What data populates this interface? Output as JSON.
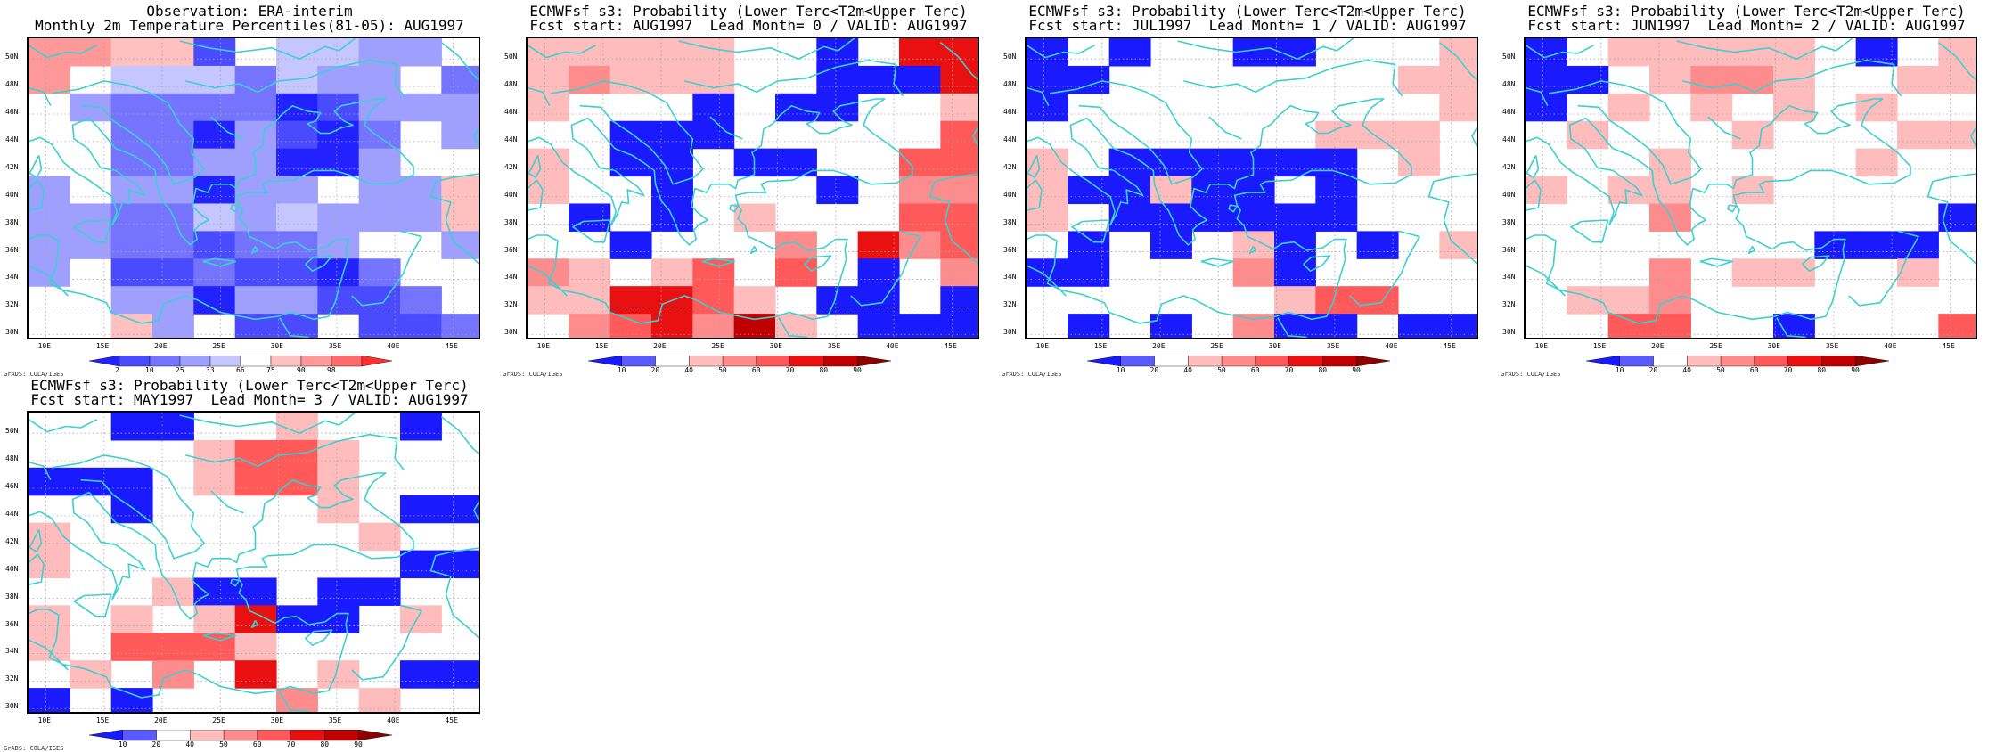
{
  "colors": {
    "coast": "#3cd0d0",
    "grid": "#a6a6a6",
    "frame": "#000000",
    "obs_scale": [
      "#2222ff",
      "#4a4aff",
      "#7474ff",
      "#9f9fff",
      "#c6c6ff",
      "#ffffff",
      "#ffc0c0",
      "#ff9898",
      "#ff6a6a",
      "#ff3030"
    ],
    "prob_scale": [
      "#1a1aff",
      "#5a5aff",
      "#ffffff",
      "#ffbcbc",
      "#ff8c8c",
      "#ff5959",
      "#e81010",
      "#c00000",
      "#8f0000"
    ]
  },
  "panels": [
    {
      "id": "obs",
      "title1": "Observation: ERA-interim",
      "title2": "Monthly 2m Temperature Percentiles(81-05): AUG1997",
      "colorbar": "obs",
      "cbar_labels": [
        "2",
        "10",
        "25",
        "33",
        "66",
        "75",
        "90",
        "98"
      ],
      "grid": [
        "77661.4433.",
        "7.4442433.2",
        ".3222201333",
        "..2203102.3",
        "..2233003..",
        "3.33033.336",
        "33224343336",
        "33221223..3",
        "3.1121102..",
        "..33033112.",
        "..63.11.112"
      ]
    },
    {
      "id": "lead0",
      "title1": "ECMWFsf s3: Probability (Lower Terc<T2m<Upper Terc)",
      "title2": "Fcst start: AUG1997  Lead Month= 0 / VALID: AUG1997",
      "colorbar": "prob",
      "cbar_labels": [
        "10",
        "20",
        "40",
        "50",
        "60",
        "70",
        "80",
        "90"
      ],
      "grid": [
        "33333..0.66",
        "34333..0006",
        "3...0.00.23",
        "..000.....5",
        "3.00.00..55",
        "3..0...0.44",
        ".0.0.3...55",
        "..0...4.645",
        "43.35.5.0.4",
        "336653.00.0",
        ".456473.000"
      ]
    },
    {
      "id": "lead1",
      "title1": "ECMWFsf s3: Probability (Lower Terc<T2m<Upper Terc)",
      "title2": "Fcst start: JUL1997  Lead Month= 1 / VALID: AUG1997",
      "colorbar": "prob",
      "cbar_labels": [
        "10",
        "20",
        "40",
        "50",
        "60",
        "70",
        "80",
        "90"
      ],
      "grid": [
        "0.0..00...3",
        "00.......33",
        "0.........3",
        ".......333.",
        "3.000000.3.",
        "300300.0...",
        "3.000000...",
        ".0.0.30.0.3",
        "00...40....",
        "......355..",
        ".0.0.400.00"
      ]
    },
    {
      "id": "lead2",
      "title1": "ECMWFsf s3: Probability (Lower Terc<T2m<Upper Terc)",
      "title2": "Fcst start: JUN1997  Lead Month= 2 / VALID: AUG1997",
      "colorbar": "prob",
      "cbar_labels": [
        "10",
        "20",
        "40",
        "50",
        "60",
        "70",
        "80",
        "90"
      ],
      "grid": [
        "0.33333.0.3",
        "00.3443..33",
        "0.3.3.3.3..",
        ".3...3...33",
        "...3....3..",
        "3.33.3.....",
        "...4......0",
        ".......000.",
        "...4.33..3.",
        ".334.......",
        "..55..0...5"
      ]
    },
    {
      "id": "lead3",
      "title1": "ECMWFsf s3: Probability (Lower Terc<T2m<Upper Terc)",
      "title2": "Fcst start: MAY1997  Lead Month= 3 / VALID: AUG1997",
      "colorbar": "prob",
      "cbar_labels": [
        "10",
        "20",
        "40",
        "50",
        "60",
        "70",
        "80",
        "90"
      ],
      "grid": [
        "..00..3..0.",
        "....3553...",
        "000.3553...",
        "..0....3.00",
        "3.......3..",
        "3........00",
        "...300.00..",
        "3.3.3600.3.",
        "3.5553.....",
        ".3.4.6.3.00",
        "0.0...4.3.."
      ]
    }
  ],
  "lat_labels": [
    "50N",
    "48N",
    "46N",
    "44N",
    "42N",
    "40N",
    "38N",
    "36N",
    "34N",
    "32N",
    "30N"
  ],
  "lon_labels": [
    "10E",
    "15E",
    "20E",
    "25E",
    "30E",
    "35E",
    "40E",
    "45E"
  ],
  "credit": "GrADS: COLA/IGES"
}
